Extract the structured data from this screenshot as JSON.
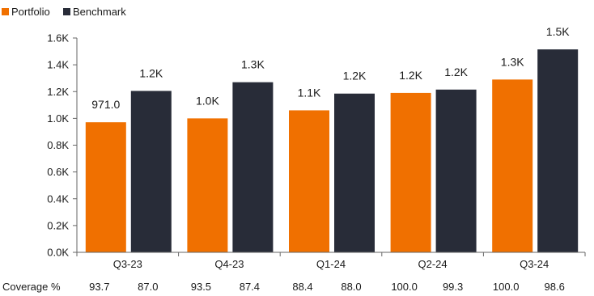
{
  "chart_data": {
    "type": "bar",
    "categories": [
      "Q3-23",
      "Q4-23",
      "Q1-24",
      "Q2-24",
      "Q3-24"
    ],
    "series": [
      {
        "name": "Portfolio",
        "color": "#f07000",
        "values": [
          971.0,
          1000,
          1060,
          1190,
          1290
        ],
        "labels": [
          "971.0",
          "1.0K",
          "1.1K",
          "1.2K",
          "1.3K"
        ],
        "coverage": [
          "93.7",
          "93.5",
          "88.4",
          "100.0",
          "100.0"
        ]
      },
      {
        "name": "Benchmark",
        "color": "#282c38",
        "values": [
          1205,
          1270,
          1185,
          1215,
          1515
        ],
        "labels": [
          "1.2K",
          "1.3K",
          "1.2K",
          "1.2K",
          "1.5K"
        ],
        "coverage": [
          "87.0",
          "87.4",
          "88.0",
          "99.3",
          "98.6"
        ]
      }
    ],
    "ylim": [
      0,
      1600
    ],
    "yticks": [
      0,
      200,
      400,
      600,
      800,
      1000,
      1200,
      1400,
      1600
    ],
    "ytick_labels": [
      "0.0K",
      "0.2K",
      "0.4K",
      "0.6K",
      "0.8K",
      "1.0K",
      "1.2K",
      "1.4K",
      "1.6K"
    ],
    "coverage_label": "Coverage %",
    "legend_position": "top-left",
    "grid": false
  }
}
